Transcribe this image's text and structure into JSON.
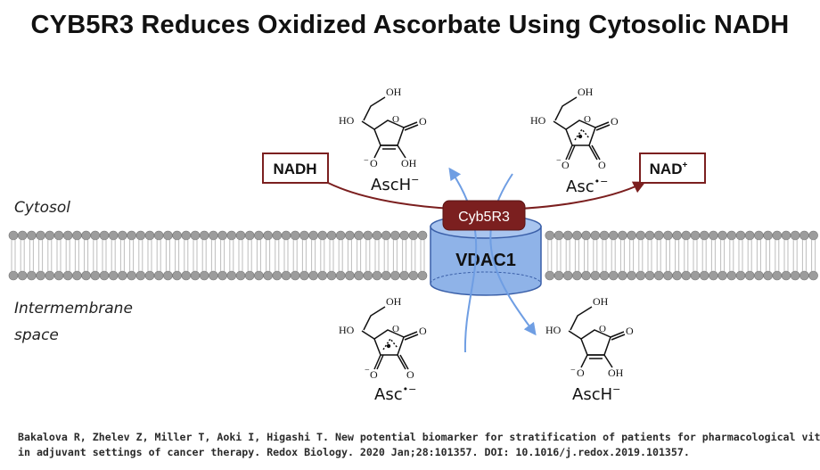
{
  "title": "CYB5R3 Reduces Oxidized Ascorbate Using Cytosolic NADH",
  "diagram": {
    "compartments": {
      "cytosol": "Cytosol",
      "intermembrane_line1": "Intermembrane",
      "intermembrane_line2": "space"
    },
    "boxes": {
      "nadh": "NADH",
      "nad_plus": "NAD",
      "nad_plus_sup": "+"
    },
    "proteins": {
      "enzyme": "Cyb5R3",
      "channel": "VDAC1"
    },
    "molecules": {
      "top_left": {
        "name": "AscH",
        "charge": "−",
        "group_oh_top": "OH",
        "group_ho_left": "HO",
        "group_o_ring": "O",
        "group_o_carbonyl": "O",
        "group_o_bottom": "O",
        "group_oh_bottom": "OH",
        "minus": "−"
      },
      "top_right": {
        "name": "Asc",
        "charge": "•−",
        "group_oh_top": "OH",
        "group_ho_left": "HO",
        "group_o_ring": "O",
        "group_o_carbonyl": "O",
        "group_o_bottom": "O",
        "group_o_bottom_right": "O",
        "minus": "−"
      },
      "bottom_left": {
        "name": "Asc",
        "charge": "•−",
        "group_oh_top": "OH",
        "group_ho_left": "HO",
        "group_o_ring": "O",
        "group_o_carbonyl": "O",
        "group_o_bottom": "O",
        "group_o_bottom_right": "O",
        "minus": "−"
      },
      "bottom_right": {
        "name": "AscH",
        "charge": "−",
        "group_oh_top": "OH",
        "group_ho_left": "HO",
        "group_o_ring": "O",
        "group_o_carbonyl": "O",
        "group_o_bottom": "O",
        "group_oh_bottom": "OH",
        "minus": "−"
      }
    },
    "colors": {
      "box_border": "#7b1f1f",
      "arrow_red": "#7b1f1f",
      "enzyme_fill": "#7b1f1f",
      "channel_fill": "#8fb3e8",
      "channel_stroke": "#3a5fa8",
      "arrow_blue": "#6f9ee3",
      "lipid_head": "#9c9c9c"
    }
  },
  "citation": {
    "line1": "Bakalova R, Zhelev Z, Miller T, Aoki I, Higashi T. New potential biomarker for stratification of patients for pharmacological vitamin C",
    "line2": "in adjuvant settings of cancer therapy. Redox Biology. 2020 Jan;28:101357. DOI: 10.1016/j.redox.2019.101357."
  }
}
